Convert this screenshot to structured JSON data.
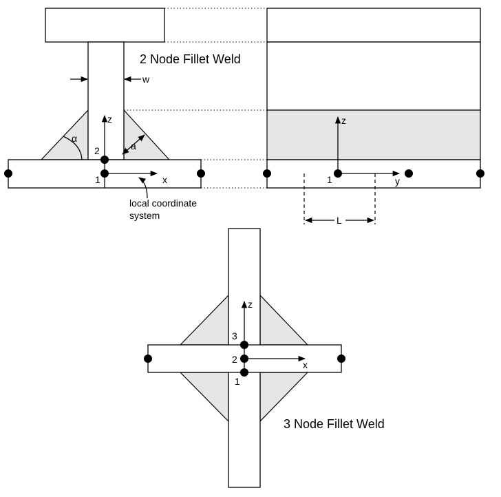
{
  "titles": {
    "two_node": "2 Node Fillet Weld",
    "three_node": "3 Node Fillet Weld"
  },
  "labels": {
    "w": "w",
    "alpha": "α",
    "a": "a",
    "z": "z",
    "x": "x",
    "y": "y",
    "L": "L",
    "local_line1": "local coordinate",
    "local_line2": "system"
  },
  "nodes": {
    "n1": "1",
    "n2": "2",
    "n3": "3"
  }
}
